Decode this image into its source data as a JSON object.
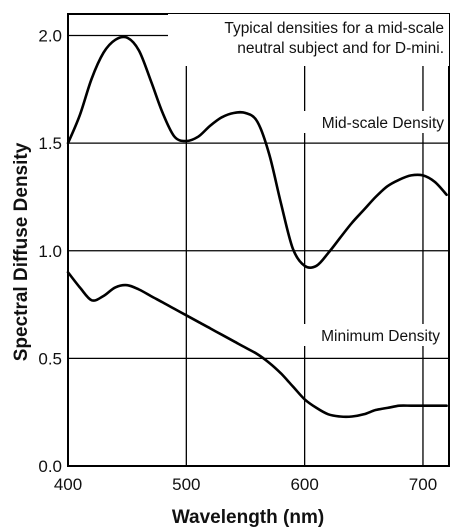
{
  "chart_data": {
    "type": "line",
    "title": "",
    "xlabel": "Wavelength (nm)",
    "ylabel": "Spectral Diffuse Density",
    "xlim": [
      400,
      722
    ],
    "ylim": [
      0.0,
      2.1
    ],
    "xticks": [
      "400",
      "500",
      "600",
      "700"
    ],
    "yticks": [
      "0.0",
      "0.5",
      "1.0",
      "1.5",
      "2.0"
    ],
    "grid": true,
    "annotation": [
      "Typical densities for a mid-scale",
      "neutral subject and for D-mini."
    ],
    "series": [
      {
        "name": "Mid-scale Density",
        "x": [
          400,
          410,
          420,
          430,
          440,
          450,
          460,
          470,
          480,
          490,
          500,
          510,
          520,
          530,
          540,
          550,
          560,
          570,
          580,
          590,
          600,
          610,
          620,
          630,
          640,
          650,
          660,
          670,
          680,
          690,
          700,
          710,
          720
        ],
        "y": [
          1.5,
          1.63,
          1.8,
          1.92,
          1.98,
          1.99,
          1.93,
          1.79,
          1.64,
          1.53,
          1.51,
          1.53,
          1.58,
          1.62,
          1.64,
          1.64,
          1.6,
          1.45,
          1.22,
          1.01,
          0.93,
          0.93,
          0.99,
          1.06,
          1.13,
          1.19,
          1.25,
          1.3,
          1.33,
          1.35,
          1.35,
          1.32,
          1.26
        ]
      },
      {
        "name": "Minimum Density",
        "x": [
          400,
          410,
          420,
          430,
          440,
          450,
          460,
          470,
          480,
          490,
          500,
          510,
          520,
          530,
          540,
          550,
          560,
          570,
          580,
          590,
          600,
          610,
          620,
          630,
          640,
          650,
          660,
          670,
          680,
          690,
          700,
          710,
          720
        ],
        "y": [
          0.9,
          0.83,
          0.77,
          0.79,
          0.83,
          0.84,
          0.82,
          0.79,
          0.76,
          0.73,
          0.7,
          0.67,
          0.64,
          0.61,
          0.58,
          0.55,
          0.52,
          0.48,
          0.43,
          0.37,
          0.31,
          0.27,
          0.24,
          0.23,
          0.23,
          0.24,
          0.26,
          0.27,
          0.28,
          0.28,
          0.28,
          0.28,
          0.28
        ]
      }
    ]
  }
}
